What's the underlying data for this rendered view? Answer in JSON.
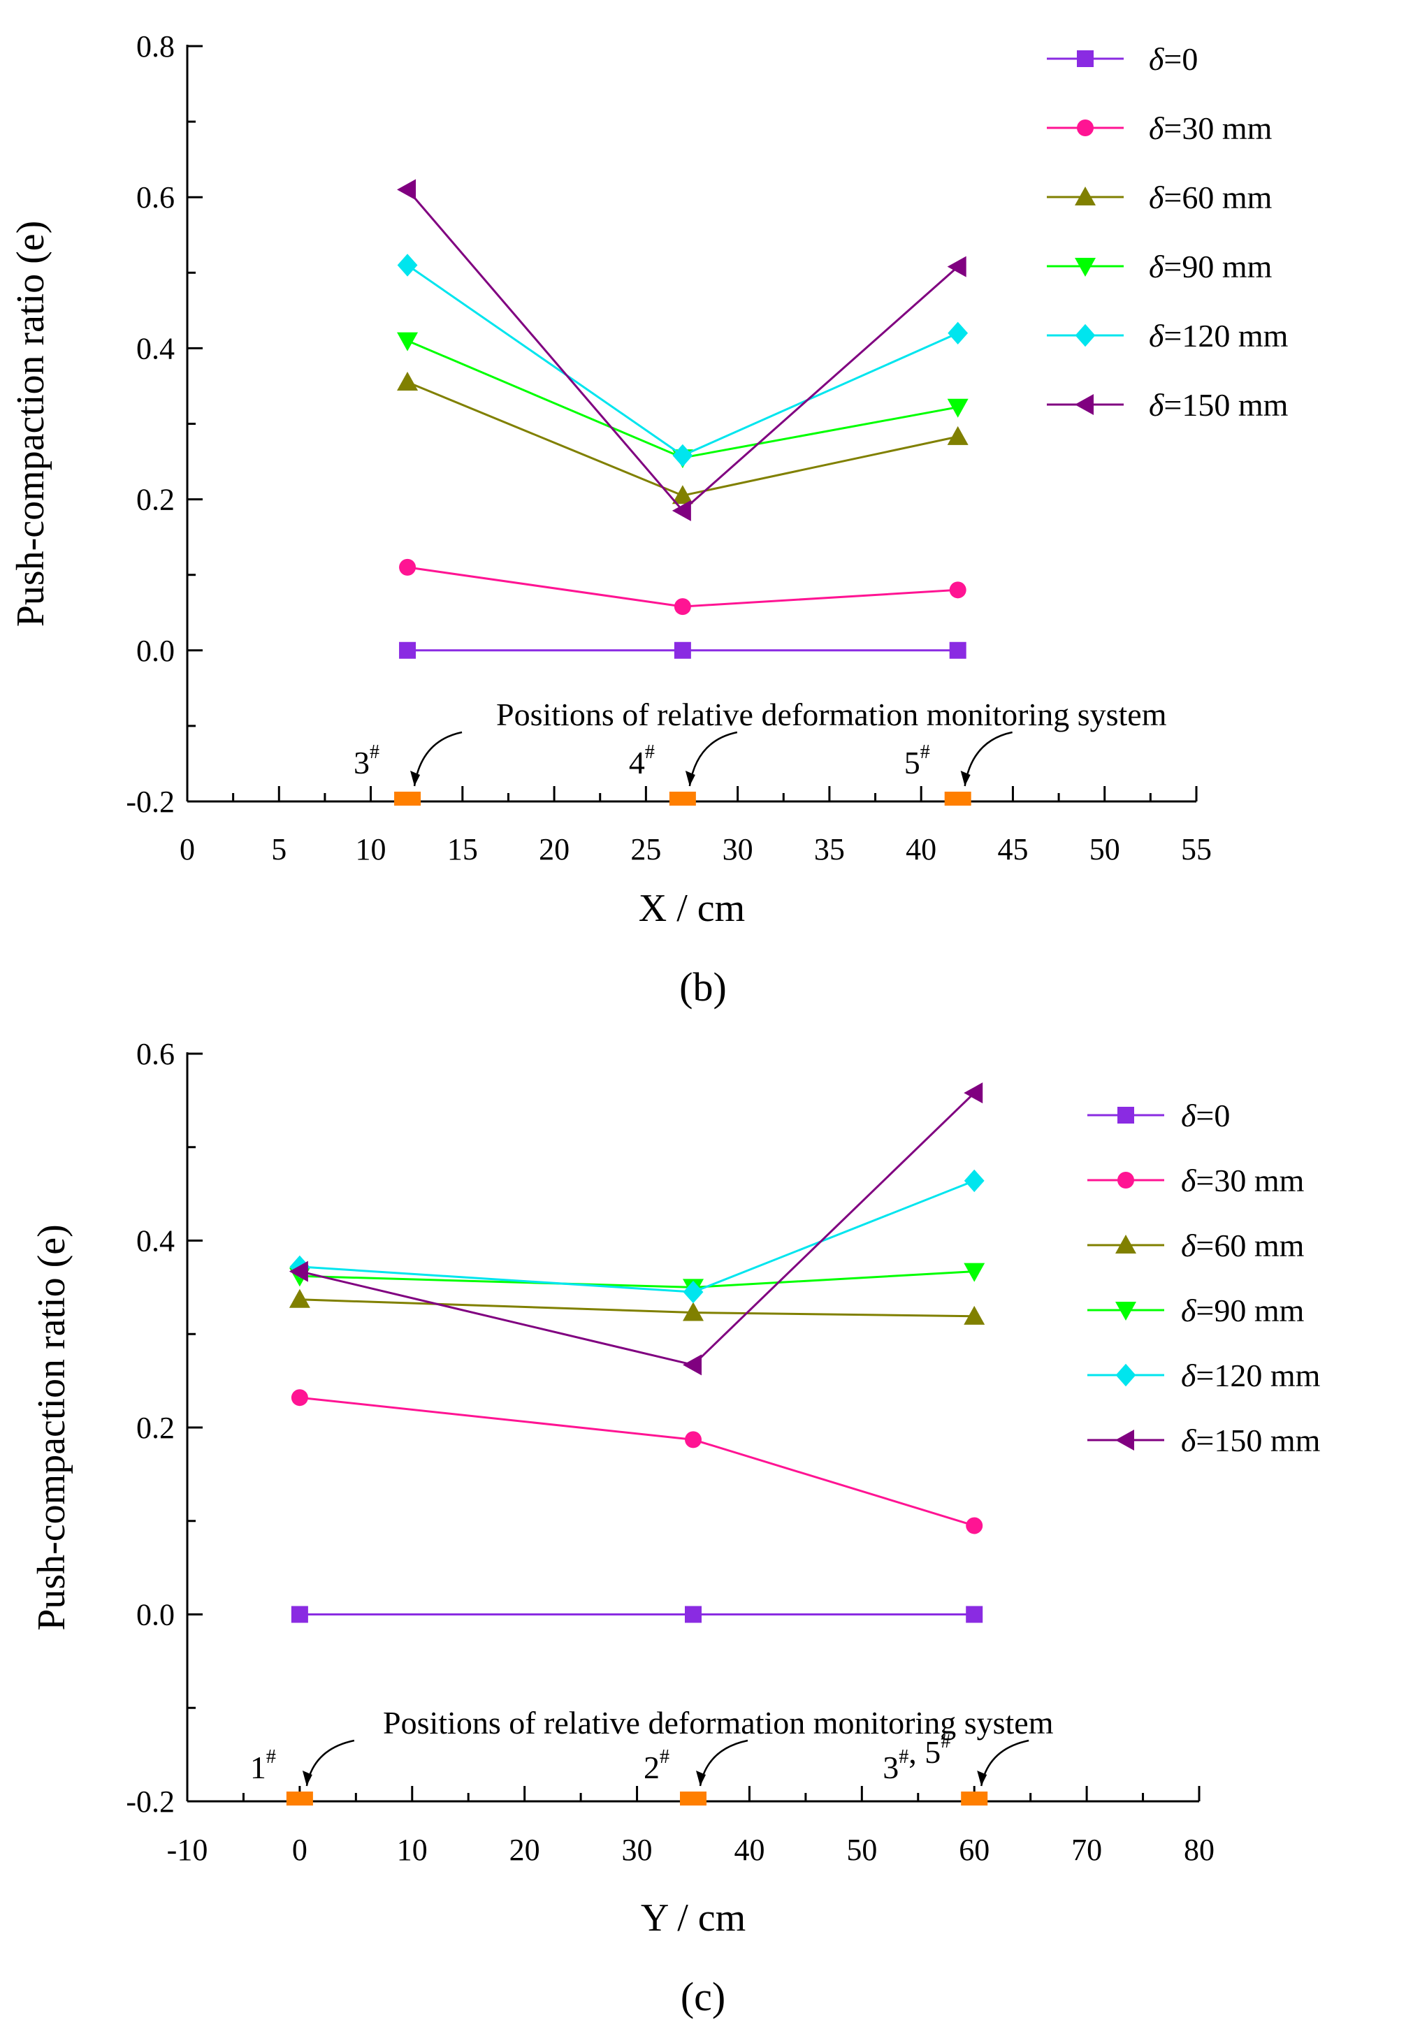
{
  "chart_data": [
    {
      "type": "line",
      "panel_label": "(b)",
      "xlabel": "X / cm",
      "ylabel": "Push-compaction ratio (e)",
      "xlim": [
        0,
        55
      ],
      "ylim": [
        -0.2,
        0.8
      ],
      "xticks": [
        0,
        5,
        10,
        15,
        20,
        25,
        30,
        35,
        40,
        45,
        50,
        55
      ],
      "xtick_labels": [
        "0",
        "5",
        "10",
        "15",
        "20",
        "25",
        "30",
        "35",
        "40",
        "45",
        "50",
        "55"
      ],
      "yticks": [
        -0.2,
        0.0,
        0.2,
        0.4,
        0.6,
        0.8
      ],
      "ytick_labels": [
        "-0.2",
        "0.0",
        "0.2",
        "0.4",
        "0.6",
        "0.8"
      ],
      "legend_position": "top-right",
      "x": [
        12,
        27,
        42
      ],
      "series": [
        {
          "name": "δ=0",
          "prefix": "δ",
          "suffix": "=0",
          "color": "#8a2be2",
          "marker": "square",
          "values": [
            0.0,
            0.0,
            0.0
          ]
        },
        {
          "name": "δ=30 mm",
          "prefix": "δ",
          "suffix": "=30 mm",
          "color": "#ff1493",
          "marker": "circle",
          "values": [
            0.11,
            0.058,
            0.08
          ]
        },
        {
          "name": "δ=60 mm",
          "prefix": "δ",
          "suffix": "=60 mm",
          "color": "#808000",
          "marker": "triangle-up",
          "values": [
            0.355,
            0.205,
            0.283
          ]
        },
        {
          "name": "δ=90 mm",
          "prefix": "δ",
          "suffix": "=90 mm",
          "color": "#00ff00",
          "marker": "triangle-down",
          "values": [
            0.41,
            0.255,
            0.322
          ]
        },
        {
          "name": "δ=120 mm",
          "prefix": "δ",
          "suffix": "=120 mm",
          "color": "#00e5ee",
          "marker": "diamond",
          "values": [
            0.51,
            0.258,
            0.42
          ]
        },
        {
          "name": "δ=150 mm",
          "prefix": "δ",
          "suffix": "=150 mm",
          "color": "#800080",
          "marker": "triangle-left",
          "values": [
            0.61,
            0.185,
            0.508
          ]
        }
      ],
      "annotation": "Positions of relative deformation monitoring system",
      "monitor_positions": [
        {
          "x": 12,
          "label": "3",
          "sup": "#"
        },
        {
          "x": 27,
          "label": "4",
          "sup": "#"
        },
        {
          "x": 42,
          "label": "5",
          "sup": "#"
        }
      ],
      "monitor_color": "#ff7f00"
    },
    {
      "type": "line",
      "panel_label": "(c)",
      "xlabel": "Y / cm",
      "ylabel": "Push-compaction ratio (e)",
      "xlim": [
        -10,
        80
      ],
      "ylim": [
        -0.2,
        0.6
      ],
      "xticks": [
        -10,
        0,
        10,
        20,
        30,
        40,
        50,
        60,
        70,
        80
      ],
      "xtick_labels": [
        "-10",
        "0",
        "10",
        "20",
        "30",
        "40",
        "50",
        "60",
        "70",
        "80"
      ],
      "yticks": [
        -0.2,
        0.0,
        0.2,
        0.4,
        0.6
      ],
      "ytick_labels": [
        "-0.2",
        "0.0",
        "0.2",
        "0.4",
        "0.6"
      ],
      "legend_position": "top-right",
      "x": [
        0,
        35,
        60
      ],
      "series": [
        {
          "name": "δ=0",
          "prefix": "δ",
          "suffix": "=0",
          "color": "#8a2be2",
          "marker": "square",
          "values": [
            0.0,
            0.0,
            0.0
          ]
        },
        {
          "name": "δ=30 mm",
          "prefix": "δ",
          "suffix": "=30 mm",
          "color": "#ff1493",
          "marker": "circle",
          "values": [
            0.232,
            0.187,
            0.095
          ]
        },
        {
          "name": "δ=60 mm",
          "prefix": "δ",
          "suffix": "=60 mm",
          "color": "#808000",
          "marker": "triangle-up",
          "values": [
            0.337,
            0.323,
            0.319
          ]
        },
        {
          "name": "δ=90 mm",
          "prefix": "δ",
          "suffix": "=90 mm",
          "color": "#00ff00",
          "marker": "triangle-down",
          "values": [
            0.362,
            0.35,
            0.367
          ]
        },
        {
          "name": "δ=120 mm",
          "prefix": "δ",
          "suffix": "=120 mm",
          "color": "#00e5ee",
          "marker": "diamond",
          "values": [
            0.372,
            0.345,
            0.464
          ]
        },
        {
          "name": "δ=150 mm",
          "prefix": "δ",
          "suffix": "=150 mm",
          "color": "#800080",
          "marker": "triangle-left",
          "values": [
            0.367,
            0.267,
            0.558
          ]
        }
      ],
      "annotation": "Positions of relative deformation monitoring system",
      "monitor_positions": [
        {
          "x": 0,
          "label": "1",
          "sup": "#"
        },
        {
          "x": 35,
          "label": "2",
          "sup": "#"
        },
        {
          "x": 60,
          "label": "3, 5",
          "sup": "#",
          "label_parts": [
            {
              "text": "3",
              "sup": "#"
            },
            {
              "text": ", 5",
              "sup": "#"
            }
          ]
        }
      ],
      "monitor_color": "#ff7f00"
    }
  ]
}
